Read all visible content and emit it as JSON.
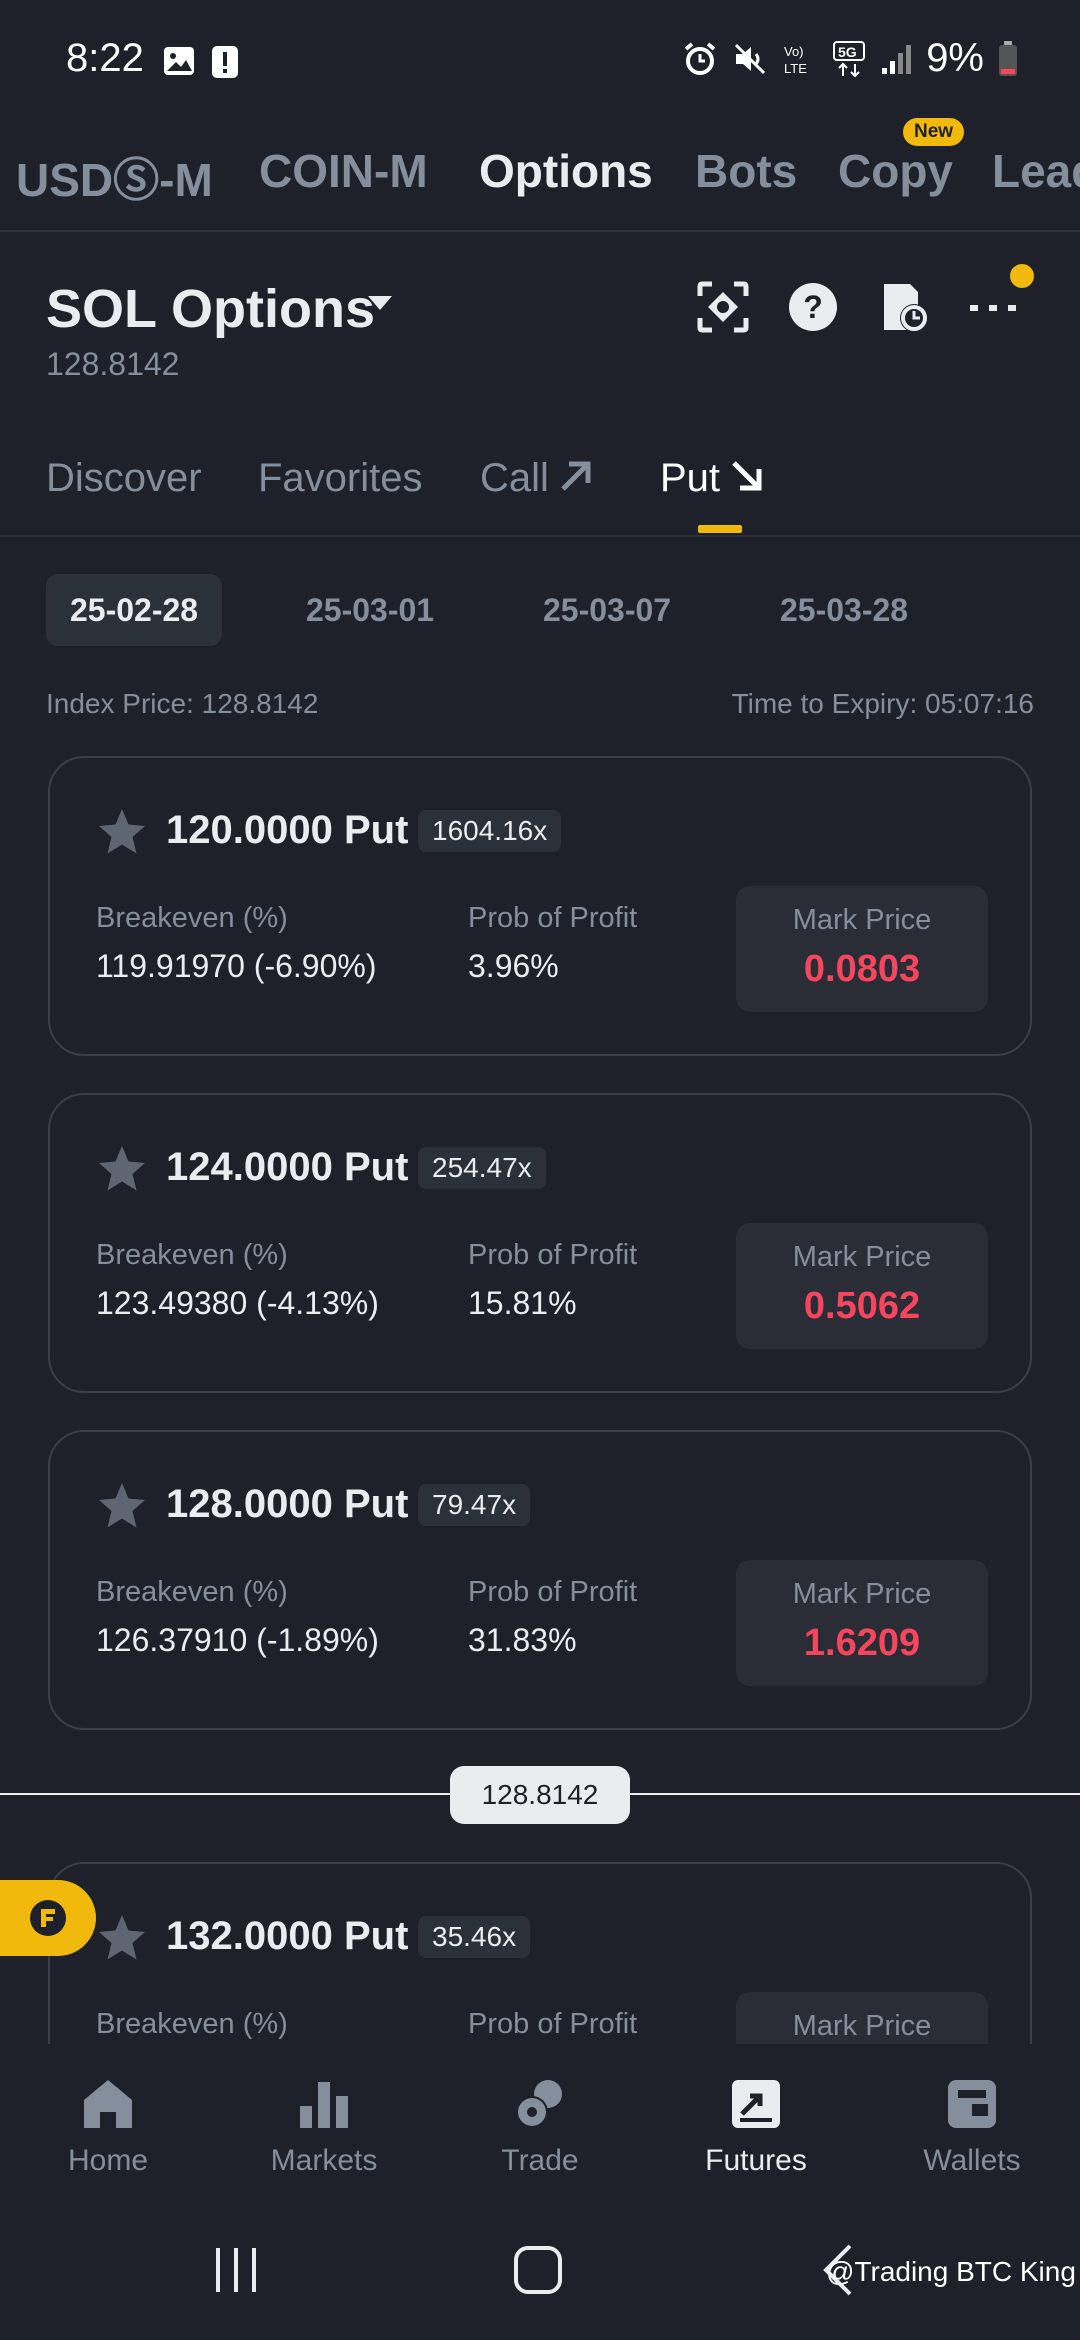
{
  "status_bar": {
    "time": "8:22",
    "battery": "9%",
    "network": "5G",
    "volte": "Vo) LTE"
  },
  "top_tabs": [
    {
      "label": "USDⓈ-M"
    },
    {
      "label": "COIN-M"
    },
    {
      "label": "Options"
    },
    {
      "label": "Bots"
    },
    {
      "label": "Copy"
    },
    {
      "label": "Lead"
    }
  ],
  "top_tabs_active": "Options",
  "new_badge": "New",
  "header": {
    "title": "SOL Options",
    "price": "128.8142"
  },
  "sub_tabs": [
    {
      "label": "Discover"
    },
    {
      "label": "Favorites"
    },
    {
      "label": "Call"
    },
    {
      "label": "Put"
    }
  ],
  "sub_tabs_active": "Put",
  "dates": [
    "25-02-28",
    "25-03-01",
    "25-03-07",
    "25-03-28"
  ],
  "dates_active": "25-02-28",
  "index_price": "Index Price: 128.8142",
  "time_to_expiry": "Time to Expiry: 05:07:16",
  "labels": {
    "breakeven": "Breakeven (%)",
    "prob_profit": "Prob of Profit",
    "mark_price": "Mark Price"
  },
  "options": [
    {
      "strike": "120.0000 Put",
      "leverage": "1604.16x",
      "breakeven": "119.91970 (-6.90%)",
      "prob_profit": "3.96%",
      "mark_price": "0.0803"
    },
    {
      "strike": "124.0000 Put",
      "leverage": "254.47x",
      "breakeven": "123.49380 (-4.13%)",
      "prob_profit": "15.81%",
      "mark_price": "0.5062"
    },
    {
      "strike": "128.0000 Put",
      "leverage": "79.47x",
      "breakeven": "126.37910 (-1.89%)",
      "prob_profit": "31.83%",
      "mark_price": "1.6209"
    },
    {
      "strike": "132.0000 Put",
      "leverage": "35.46x",
      "breakeven": "",
      "prob_profit": "",
      "mark_price": ""
    }
  ],
  "current_price_marker": "128.8142",
  "bottom_nav": [
    {
      "label": "Home",
      "icon": "home-icon"
    },
    {
      "label": "Markets",
      "icon": "markets-icon"
    },
    {
      "label": "Trade",
      "icon": "trade-icon"
    },
    {
      "label": "Futures",
      "icon": "futures-icon"
    },
    {
      "label": "Wallets",
      "icon": "wallets-icon"
    }
  ],
  "bottom_nav_active": "Futures",
  "watermark": "@Trading BTC King",
  "colors": {
    "background": "#1e2129",
    "accent": "#f0b90b",
    "negative": "#f6465d",
    "muted": "#848e9c"
  }
}
